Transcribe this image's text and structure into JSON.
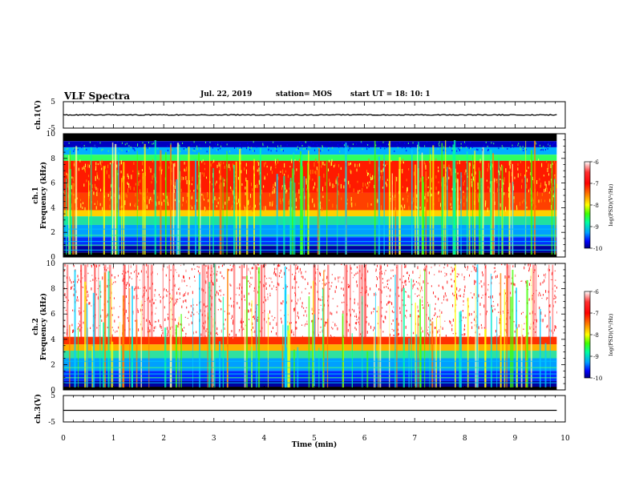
{
  "header": {
    "title": "VLF Spectra",
    "date": "Jul. 22, 2019",
    "station": "station= MOS",
    "start": "start UT =  18: 10: 1"
  },
  "chart_data": [
    {
      "type": "line",
      "panel": "ch1-waveform",
      "ylabel": "ch.1(V)",
      "ylim": [
        -5,
        5
      ],
      "yticks": [
        "5",
        "-5"
      ],
      "xlim": [
        0,
        10
      ],
      "series": [
        {
          "x": [
            0,
            9.83
          ],
          "values": [
            0,
            0
          ]
        }
      ]
    },
    {
      "type": "heatmap",
      "panel": "ch1-spectrogram",
      "ylabel": "ch.1  Frequency (kHz)",
      "xlim": [
        0,
        10
      ],
      "ylim": [
        0,
        10
      ],
      "x_data_end": 9.83,
      "yticks": [
        "0",
        "2",
        "4",
        "6",
        "8",
        "10"
      ],
      "colorbar": {
        "label": "log(PSD)(V²/Hz)",
        "range": [
          -10,
          -6
        ],
        "ticks": [
          "-6",
          "-7",
          "-8",
          "-9",
          "-10"
        ]
      }
    },
    {
      "type": "heatmap",
      "panel": "ch2-spectrogram",
      "ylabel": "ch.2  Frequency (kHz)",
      "xlim": [
        0,
        10
      ],
      "ylim": [
        0,
        10
      ],
      "x_data_end": 9.83,
      "yticks": [
        "0",
        "2",
        "4",
        "6",
        "8",
        "10"
      ],
      "colorbar": {
        "label": "log(PSD)(V²/Hz)",
        "range": [
          -10,
          -6
        ],
        "ticks": [
          "-6",
          "-7",
          "-8",
          "-9",
          "-10"
        ]
      }
    },
    {
      "type": "line",
      "panel": "ch3-waveform",
      "ylabel": "ch.3(V)",
      "ylim": [
        -5,
        5
      ],
      "yticks": [
        "5",
        "-5"
      ],
      "xlim": [
        0,
        10
      ],
      "series": [
        {
          "x": [
            0,
            9.83
          ],
          "values": [
            -0.6,
            -0.6
          ]
        }
      ]
    }
  ],
  "xaxis": {
    "label": "Time (min)",
    "ticks": [
      "0",
      "1",
      "2",
      "3",
      "4",
      "5",
      "6",
      "7",
      "8",
      "9",
      "10"
    ]
  },
  "colors": {
    "colormap": [
      "#000080",
      "#0000ff",
      "#00a0ff",
      "#00ffa0",
      "#40ff00",
      "#ffff00",
      "#ff8000",
      "#ff2000",
      "#ffffff"
    ]
  }
}
